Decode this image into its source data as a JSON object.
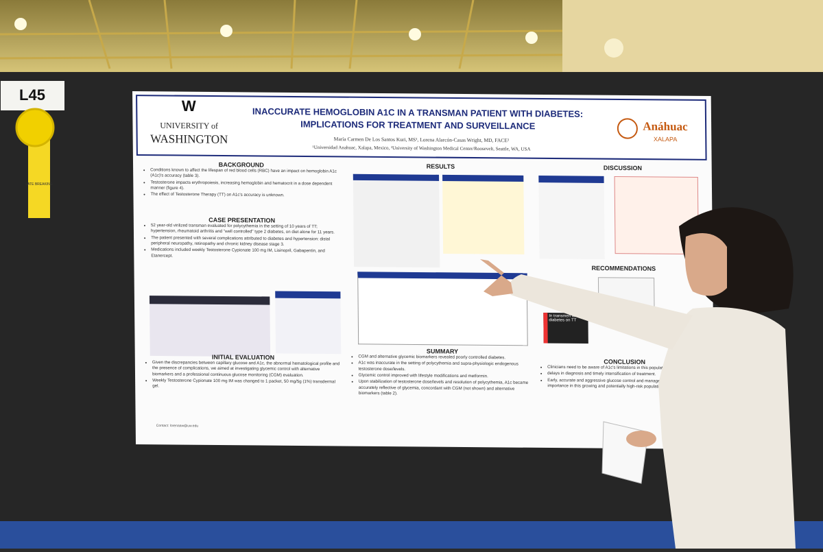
{
  "booth": {
    "label": "L45",
    "ribbon": "LATE BREAKING"
  },
  "header": {
    "university_small": "UNIVERSITY of",
    "university": "WASHINGTON",
    "title": [
      "INACCURATE HEMOGLOBIN A1C IN A TRANSMAN PATIENT WITH DIABETES:",
      "IMPLICATIONS FOR TREATMENT AND SURVEILLANCE"
    ],
    "authors": "María Carmen De Los Santos Kuri, MS¹, Lorena Alarcón-Casas Wright, MD, FACE²",
    "affiliations": "¹Universidad Anahuac, Xalapa, Mexico, ²University of Washington Medical Center/Roosevelt, Seattle, WA, USA",
    "logo": "Anáhuac",
    "logo_sub": "XALAPA"
  },
  "sections": {
    "background": {
      "heading": "BACKGROUND",
      "bullets": [
        "Conditions known to affect the lifespan of red blood cells (RBC) have an impact on hemoglobin A1c (A1c)'s accuracy (table 3).",
        "Testosterone impacts erythropoiesis, increasing hemoglobin and hematocrit in a dose dependent manner (figure 4).",
        "The effect of Testosterone Therapy (TT) on A1c's accuracy is unknown."
      ]
    },
    "case": {
      "heading": "CASE PRESENTATION",
      "bullets": [
        "52 year-old virilized transman evaluated for polycythemia in the setting of 10 years of TT; hypertension, rheumatoid arthritis and \"well controlled\" type 2 diabetes, on diet alone for 11 years.",
        "The patient presented with several complications attributed to diabetes and hypertension: distal peripheral neuropathy, retinopathy and chronic kidney disease stage 3.",
        "Medications included weekly Testosterone Cypionate 100 mg IM, Lisinopril, Gabapentin, and Etanercept."
      ]
    },
    "initial": {
      "heading": "INITIAL EVALUATION",
      "bullets": [
        "Given the discrepancies between capillary glucose and A1c, the abnormal hematological profile and the presence of complications, we aimed at investigating glycemic control with alternative biomarkers and a professional continuous glucose monitoring (CGM) evaluation.",
        "Weekly Testosterone Cypionate 100 mg IM was changed to 1 packet, 50 mg/5g (1%) transdermal gel."
      ]
    },
    "results": {
      "heading": "RESULTS"
    },
    "summary": {
      "heading": "SUMMARY",
      "bullets": [
        "CGM and alternative glycemic biomarkers revealed poorly controlled diabetes.",
        "A1c was inaccurate in the setting of polycythemia and supra-physiologic endogenous testosterone dose/levels.",
        "Glycemic control improved with lifestyle modifications and metformin.",
        "Upon stabilization of testosterone dose/levels and resolution of polycythemia, A1c became accurately reflective of glycemia, concordant with CGM (not shown) and alternative biomarkers (table 2)."
      ]
    },
    "discussion": {
      "heading": "DISCUSSION"
    },
    "recommendations": {
      "heading": "RECOMMENDATIONS",
      "callout": "In transmen with diabetes on TT"
    },
    "conclusion": {
      "heading": "CONCLUSION",
      "bullets": [
        "Clinicians need to be aware of A1c's limitations in this population",
        "delays in diagnosis and timely intensification of treatment.",
        "Early, accurate and aggressive glucose control and management is of critical importance in this growing and potentially high-risk population."
      ]
    }
  },
  "contact": "Contact: lorenaaw@uw.edu"
}
